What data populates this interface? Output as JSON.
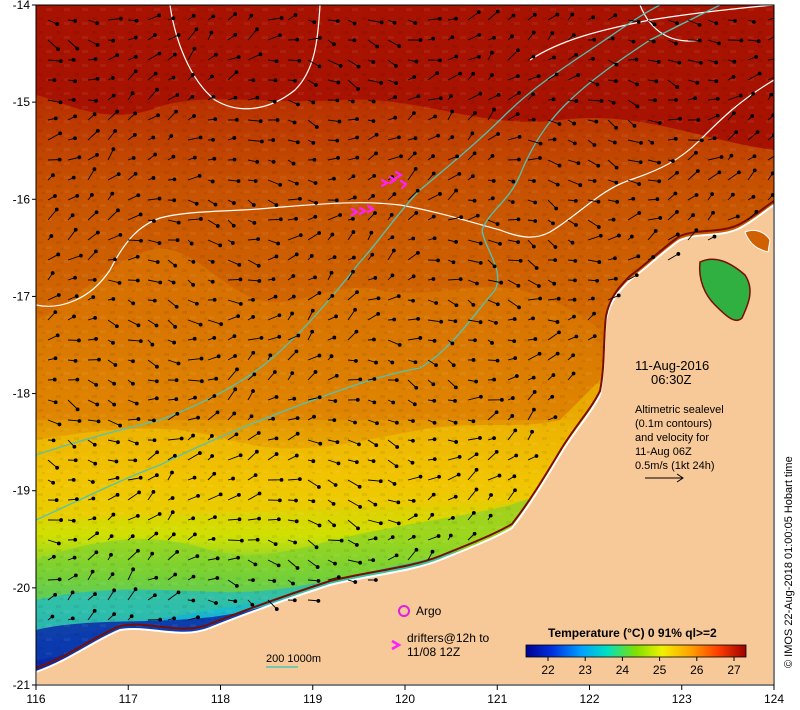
{
  "map": {
    "lon_ticks": [
      "116",
      "117",
      "118",
      "119",
      "120",
      "121",
      "122",
      "123",
      "124"
    ],
    "lat_ticks": [
      "-14",
      "-15",
      "-16",
      "-17",
      "-18",
      "-19",
      "-20",
      "-21"
    ],
    "date": "11-Aug-2016",
    "time": "06:30Z",
    "altimetry_lines": [
      "Altimetric sealevel",
      "(0.1m contours)",
      "and velocity for",
      "11-Aug 06Z",
      "0.5m/s (1kt 24h)"
    ],
    "argo_label": "Argo",
    "drifters_lines": [
      "drifters@12h to",
      "11/08 12Z"
    ],
    "isobath_label": "200  1000m",
    "colorbar_title": "Temperature (°C) 0 91% ql>=2",
    "colorbar_ticks": [
      "22",
      "23",
      "24",
      "25",
      "26",
      "27"
    ],
    "credit": "© IMOS 22-Aug-2018 01:00:05 Hobart time"
  },
  "colors": {
    "land": "#f7c898",
    "warm_sea": "#b01500",
    "coast_outline": "#ffffff",
    "isobath": "#4fc4b8",
    "contour": "#ffffff",
    "argo": "#e020e0",
    "drifter": "#ff20ff"
  }
}
